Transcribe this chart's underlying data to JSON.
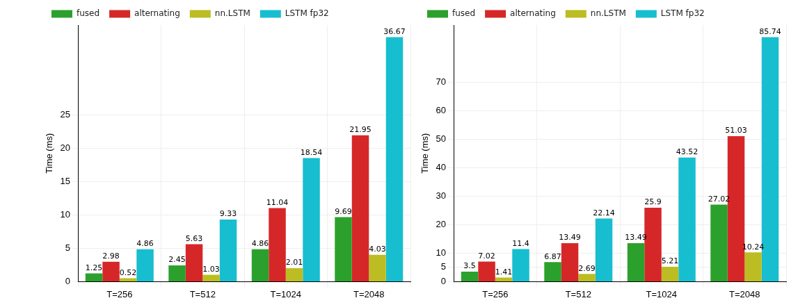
{
  "chart_data": [
    {
      "type": "bar",
      "ylabel": "Time (ms)",
      "categories": [
        "T=256",
        "T=512",
        "T=1024",
        "T=2048"
      ],
      "series": [
        {
          "name": "fused",
          "color": "#2ca02c",
          "values": [
            1.25,
            2.45,
            4.86,
            9.69
          ]
        },
        {
          "name": "alternating",
          "color": "#d62728",
          "values": [
            2.98,
            5.63,
            11.04,
            21.95
          ]
        },
        {
          "name": "nn.LSTM",
          "color": "#bcbd22",
          "values": [
            0.52,
            1.03,
            2.01,
            4.03
          ]
        },
        {
          "name": "LSTM fp32",
          "color": "#17becf",
          "values": [
            4.86,
            9.33,
            18.54,
            36.67
          ]
        }
      ],
      "ylim": [
        0,
        38.5
      ],
      "yticks": [
        0,
        5,
        10,
        15,
        20,
        25
      ],
      "grid": true,
      "legend": "top",
      "data_labels": true
    },
    {
      "type": "bar",
      "ylabel": "Time (ms)",
      "categories": [
        "T=256",
        "T=512",
        "T=1024",
        "T=2048"
      ],
      "series": [
        {
          "name": "fused",
          "color": "#2ca02c",
          "values": [
            3.5,
            6.87,
            13.49,
            27.02
          ]
        },
        {
          "name": "alternating",
          "color": "#d62728",
          "values": [
            7.02,
            13.49,
            25.9,
            51.03
          ]
        },
        {
          "name": "nn.LSTM",
          "color": "#bcbd22",
          "values": [
            1.41,
            2.69,
            5.21,
            10.24
          ]
        },
        {
          "name": "LSTM fp32",
          "color": "#17becf",
          "values": [
            11.4,
            22.14,
            43.52,
            85.74
          ]
        }
      ],
      "ylim": [
        0,
        90
      ],
      "yticks": [
        0,
        5,
        10,
        20,
        30,
        40,
        50,
        60,
        70
      ],
      "grid": true,
      "legend": "top",
      "data_labels": true
    }
  ]
}
